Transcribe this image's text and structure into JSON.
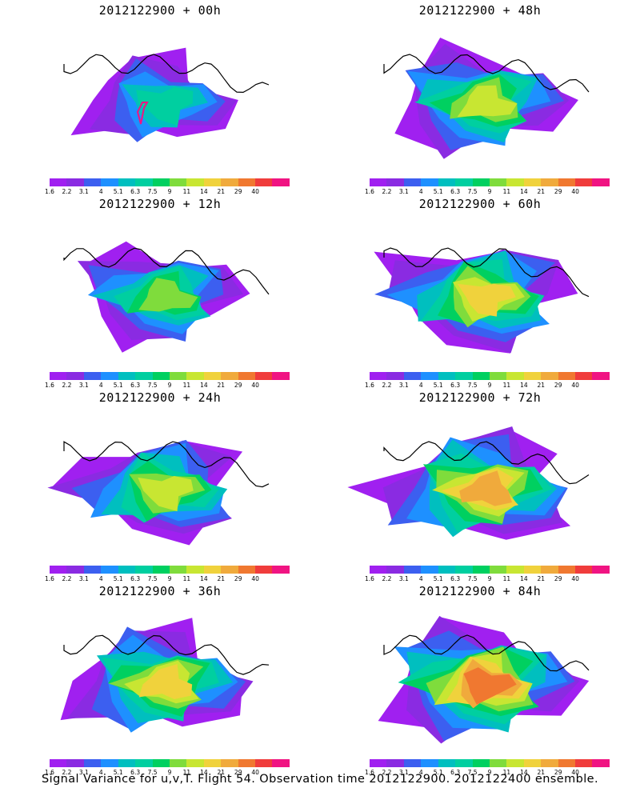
{
  "panels": [
    {
      "title": "2012122900 + 00h"
    },
    {
      "title": "2012122900 + 48h"
    },
    {
      "title": "2012122900 + 12h"
    },
    {
      "title": "2012122900 + 60h"
    },
    {
      "title": "2012122900 + 24h"
    },
    {
      "title": "2012122900 + 72h"
    },
    {
      "title": "2012122900 + 36h"
    },
    {
      "title": "2012122900 + 84h"
    }
  ],
  "colorbar": {
    "labels": [
      "1.6",
      "2.2",
      "3.1",
      "4",
      "5.1",
      "6.3",
      "7.5",
      "9",
      "11",
      "14",
      "21",
      "29",
      "40"
    ],
    "colors": [
      "#a020f0",
      "#8a2be2",
      "#3c5ff0",
      "#1e90ff",
      "#00bfbf",
      "#00cfa0",
      "#00d060",
      "#7fdc3c",
      "#c8e632",
      "#f0d23c",
      "#f0aa3c",
      "#f07830",
      "#f03c3c",
      "#f01482"
    ]
  },
  "caption": "Signal Variance for u,v,T. Flight 54. Observation time 2012122900. 2012122400 ensemble.",
  "panel_intensity": [
    0.25,
    0.6,
    0.4,
    0.7,
    0.55,
    0.8,
    0.65,
    0.85
  ]
}
